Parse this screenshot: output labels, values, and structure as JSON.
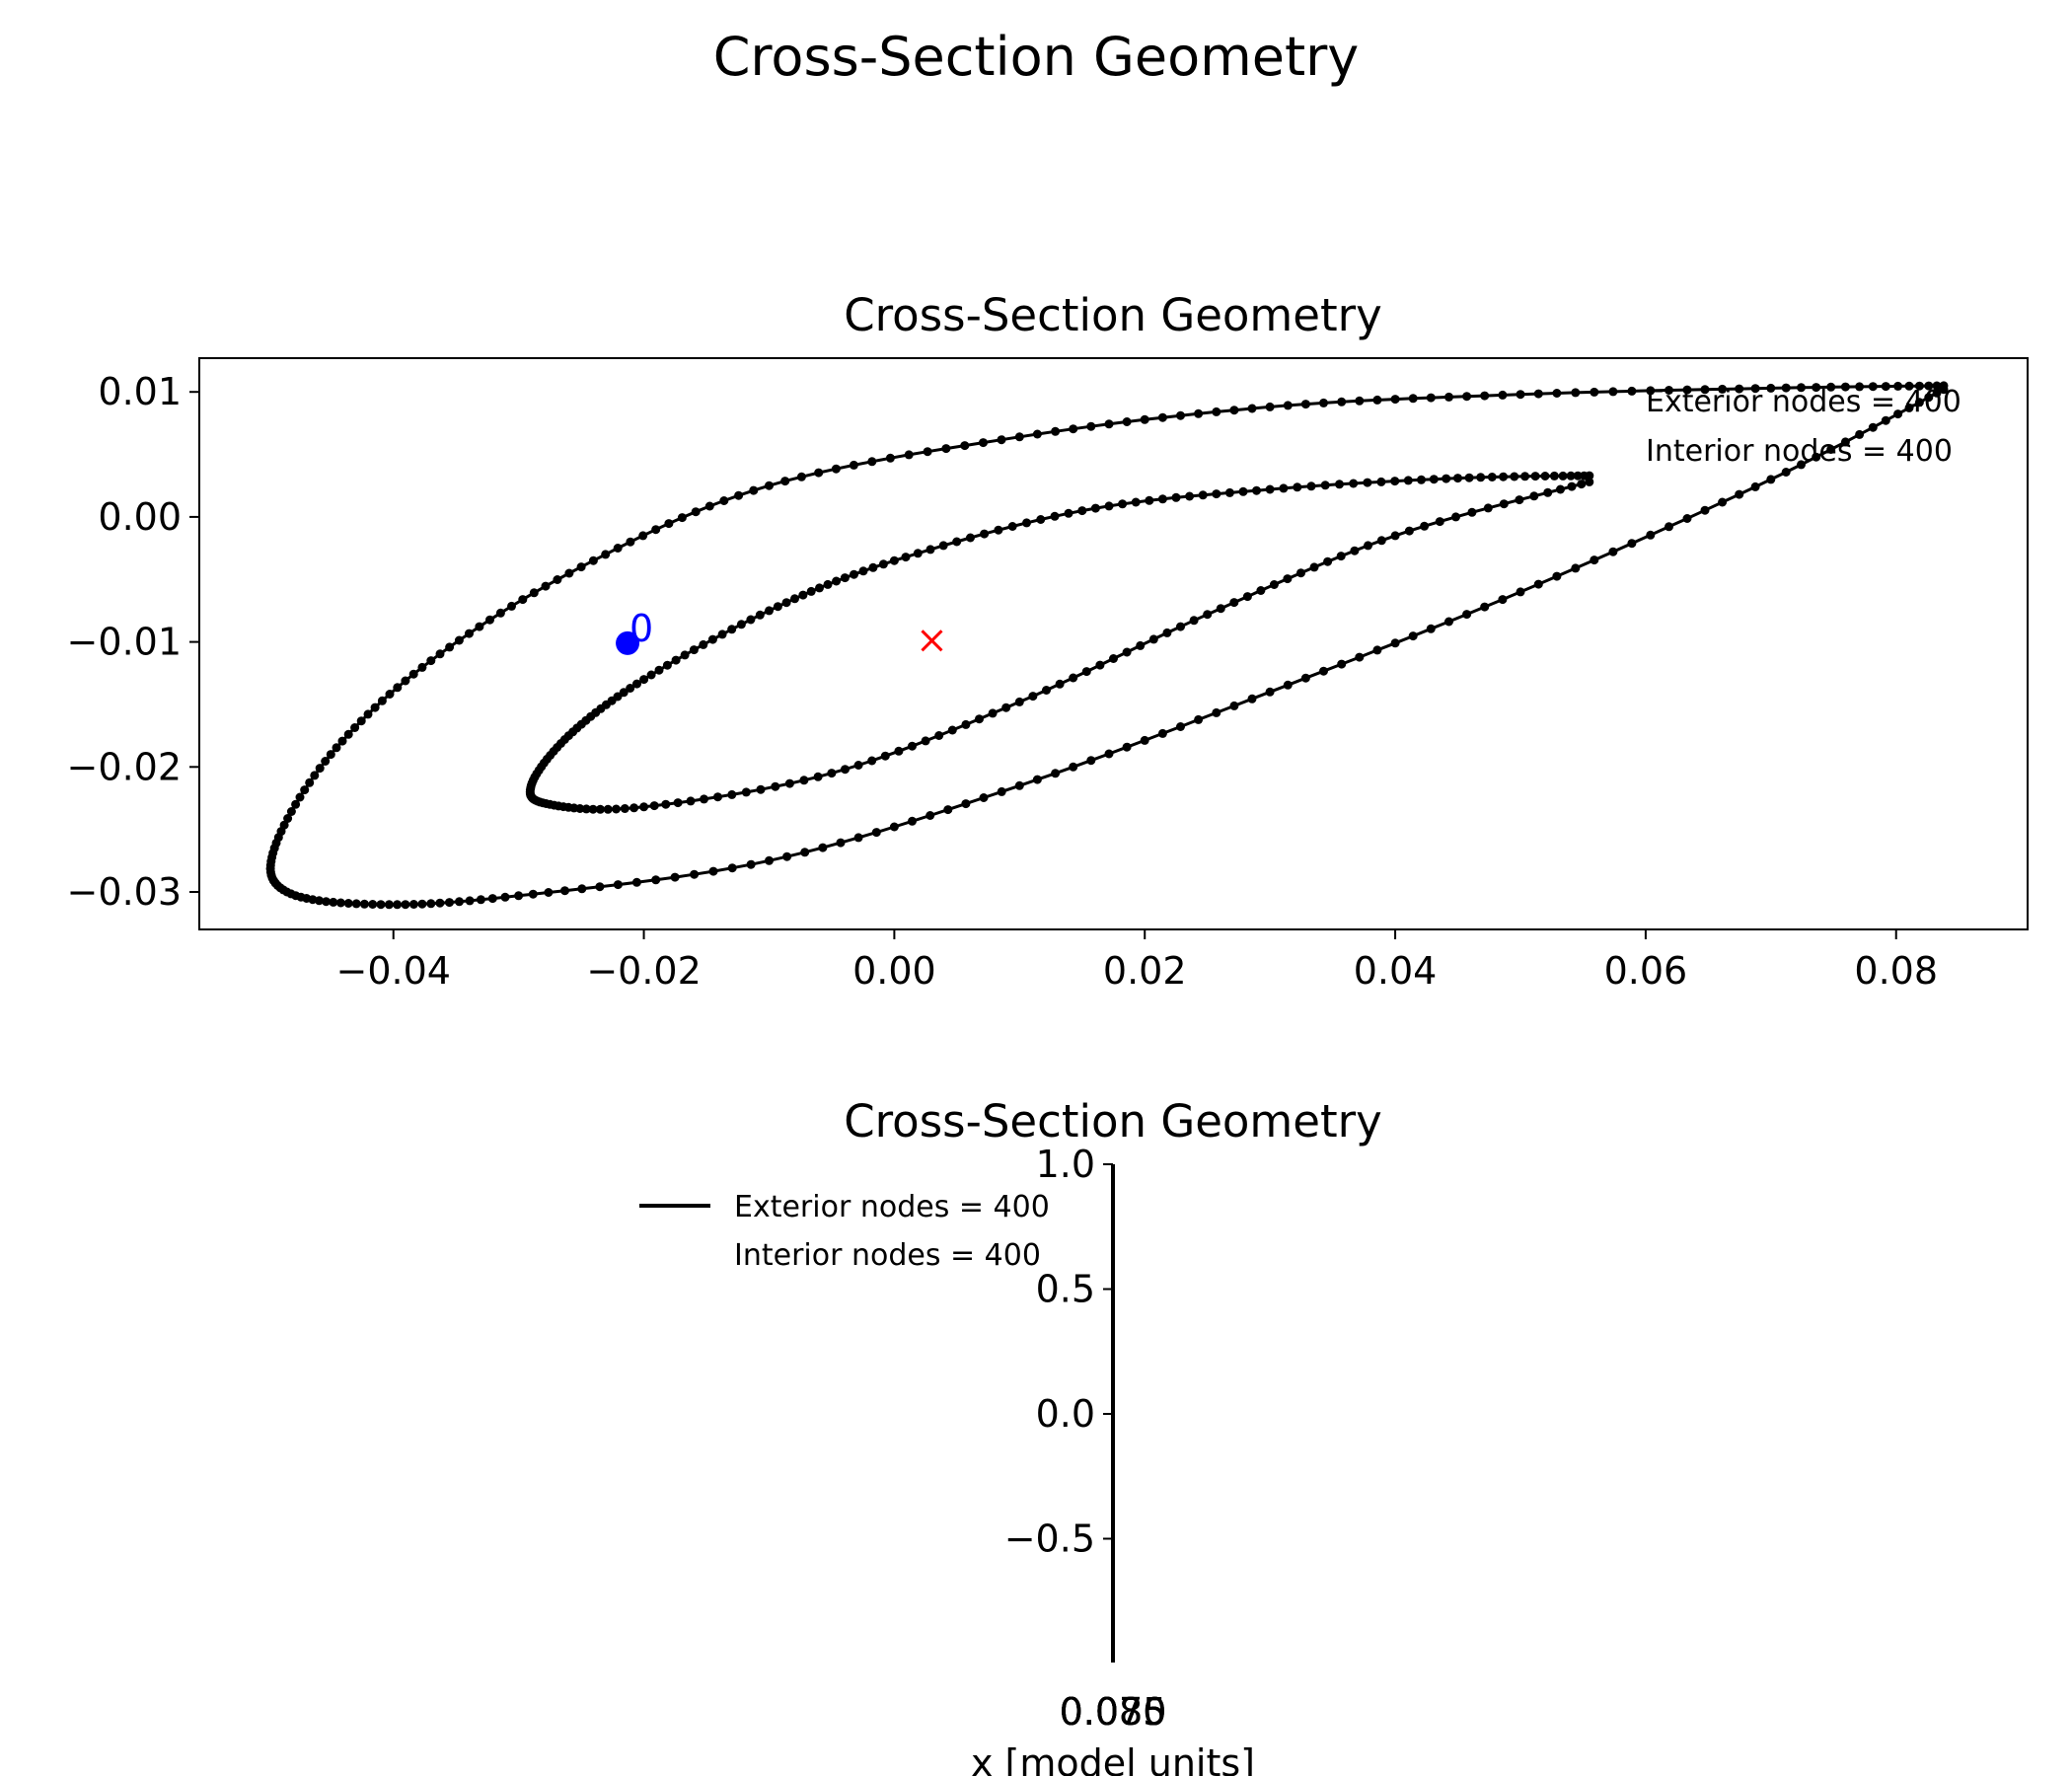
{
  "figure": {
    "suptitle": "Cross-Section Geometry"
  },
  "chart_data": [
    {
      "type": "scatter",
      "title": "Cross-Section Geometry",
      "xlabel": "",
      "ylabel": "",
      "xlim": [
        -0.0555,
        0.0905
      ],
      "ylim": [
        -0.033,
        0.0127
      ],
      "xticks": [
        "−0.04",
        "−0.02",
        "0.00",
        "0.02",
        "0.04",
        "0.06",
        "0.08"
      ],
      "xtick_values": [
        -0.04,
        -0.02,
        0.0,
        0.02,
        0.04,
        0.06,
        0.08
      ],
      "yticks": [
        "0.01",
        "0.00",
        "−0.01",
        "−0.02",
        "−0.03"
      ],
      "ytick_values": [
        0.01,
        0.0,
        -0.01,
        -0.02,
        -0.03
      ],
      "grid": false,
      "annotations": {
        "exterior_nodes": "Exterior nodes = 400",
        "interior_nodes": "Interior nodes = 400",
        "start_label": "0",
        "placement": "top-right"
      },
      "exterior_outline": [
        [
          0.0838,
          0.0105
        ],
        [
          0.07,
          0.0103
        ],
        [
          0.05,
          0.0098
        ],
        [
          0.03,
          0.0088
        ],
        [
          0.01,
          0.0064
        ],
        [
          -0.01,
          0.0025
        ],
        [
          -0.025,
          -0.004
        ],
        [
          -0.037,
          -0.0115
        ],
        [
          -0.045,
          -0.019
        ],
        [
          -0.0495,
          -0.0265
        ],
        [
          -0.0485,
          -0.03
        ],
        [
          -0.041,
          -0.031
        ],
        [
          -0.03,
          -0.0303
        ],
        [
          -0.01,
          -0.0275
        ],
        [
          0.01,
          -0.0215
        ],
        [
          0.03,
          -0.014
        ],
        [
          0.05,
          -0.006
        ],
        [
          0.07,
          0.003
        ],
        [
          0.0838,
          0.0102
        ]
      ],
      "interior_outline": [
        [
          0.0555,
          0.0033
        ],
        [
          0.045,
          0.0031
        ],
        [
          0.03,
          0.0022
        ],
        [
          0.015,
          0.0005
        ],
        [
          0.0,
          -0.0035
        ],
        [
          -0.01,
          -0.0075
        ],
        [
          -0.02,
          -0.013
        ],
        [
          -0.026,
          -0.0175
        ],
        [
          -0.029,
          -0.0215
        ],
        [
          -0.0275,
          -0.023
        ],
        [
          -0.02,
          -0.0232
        ],
        [
          -0.005,
          -0.0205
        ],
        [
          0.01,
          -0.0148
        ],
        [
          0.025,
          -0.0078
        ],
        [
          0.04,
          -0.0015
        ],
        [
          0.0555,
          0.0028
        ]
      ],
      "start_node": {
        "x": -0.0213,
        "y": -0.0101,
        "color": "#0000ff"
      },
      "centroid": {
        "x": 0.003,
        "y": -0.0099,
        "color": "#ff0000"
      },
      "outline_color": "#000000"
    },
    {
      "type": "line",
      "title": "Cross-Section Geometry",
      "xlabel": "x [model units]",
      "ylabel": "",
      "ylim": [
        -1.0,
        1.0
      ],
      "xticks": [
        "0.070",
        "0.075",
        "0.080",
        "0.085"
      ],
      "yticks": [
        "1.0",
        "0.5",
        "0.0",
        "−0.5"
      ],
      "ytick_values": [
        1.0,
        0.5,
        0.0,
        -0.5
      ],
      "grid": false,
      "legend": {
        "placement": "top-left",
        "entries": [
          "Exterior nodes = 400",
          "Interior nodes = 400"
        ]
      },
      "line_color": "#000000"
    }
  ]
}
